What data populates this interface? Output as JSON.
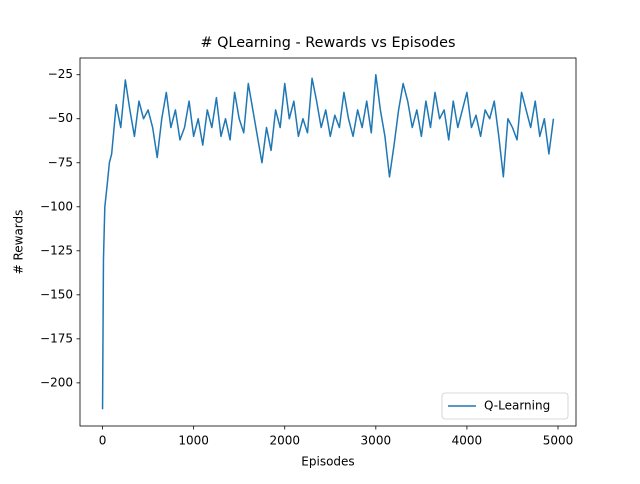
{
  "chart_data": {
    "type": "line",
    "title": "# QLearning - Rewards vs Episodes",
    "xlabel": "Episodes",
    "ylabel": "# Rewards",
    "x": [
      0,
      10,
      25,
      50,
      75,
      100,
      150,
      200,
      250,
      300,
      350,
      400,
      450,
      500,
      550,
      600,
      650,
      700,
      750,
      800,
      850,
      900,
      950,
      1000,
      1050,
      1100,
      1150,
      1200,
      1250,
      1300,
      1350,
      1400,
      1450,
      1500,
      1550,
      1600,
      1650,
      1700,
      1750,
      1800,
      1850,
      1900,
      1950,
      2000,
      2050,
      2100,
      2150,
      2200,
      2250,
      2300,
      2350,
      2400,
      2450,
      2500,
      2550,
      2600,
      2650,
      2700,
      2750,
      2800,
      2850,
      2900,
      2950,
      3000,
      3050,
      3100,
      3150,
      3200,
      3250,
      3300,
      3350,
      3400,
      3450,
      3500,
      3550,
      3600,
      3650,
      3700,
      3750,
      3800,
      3850,
      3900,
      3950,
      4000,
      4050,
      4100,
      4150,
      4200,
      4250,
      4300,
      4350,
      4400,
      4450,
      4500,
      4550,
      4600,
      4650,
      4700,
      4750,
      4800,
      4850,
      4900,
      4950
    ],
    "series": [
      {
        "name": "Q-Learning",
        "color": "#1f77b4",
        "values": [
          -215,
          -130,
          -100,
          -88,
          -75,
          -70,
          -42,
          -55,
          -28,
          -45,
          -60,
          -40,
          -50,
          -45,
          -55,
          -72,
          -50,
          -35,
          -55,
          -45,
          -62,
          -55,
          -40,
          -60,
          -50,
          -65,
          -45,
          -55,
          -38,
          -60,
          -50,
          -62,
          -35,
          -50,
          -58,
          -30,
          -45,
          -60,
          -75,
          -55,
          -68,
          -45,
          -55,
          -30,
          -50,
          -40,
          -60,
          -50,
          -58,
          -27,
          -40,
          -55,
          -45,
          -60,
          -48,
          -55,
          -35,
          -50,
          -60,
          -45,
          -55,
          -40,
          -58,
          -25,
          -45,
          -60,
          -83,
          -65,
          -45,
          -30,
          -40,
          -55,
          -45,
          -60,
          -40,
          -55,
          -35,
          -50,
          -45,
          -62,
          -40,
          -55,
          -45,
          -35,
          -55,
          -48,
          -60,
          -45,
          -50,
          -40,
          -60,
          -83,
          -50,
          -55,
          -62,
          -35,
          -45,
          -55,
          -40,
          -60,
          -50,
          -70,
          -50
        ]
      }
    ],
    "xlim": [
      -247.5,
      5197.5
    ],
    "ylim": [
      -224.5,
      -15.5
    ],
    "xticks": [
      0,
      1000,
      2000,
      3000,
      4000,
      5000
    ],
    "yticks": [
      {
        "value": -200,
        "label": "−200"
      },
      {
        "value": -175,
        "label": "−175"
      },
      {
        "value": -150,
        "label": "−150"
      },
      {
        "value": -125,
        "label": "−125"
      },
      {
        "value": -100,
        "label": "−100"
      },
      {
        "value": -75,
        "label": "−75"
      },
      {
        "value": -50,
        "label": "−50"
      },
      {
        "value": -25,
        "label": "−25"
      }
    ],
    "legend": "lower right",
    "grid": false
  }
}
